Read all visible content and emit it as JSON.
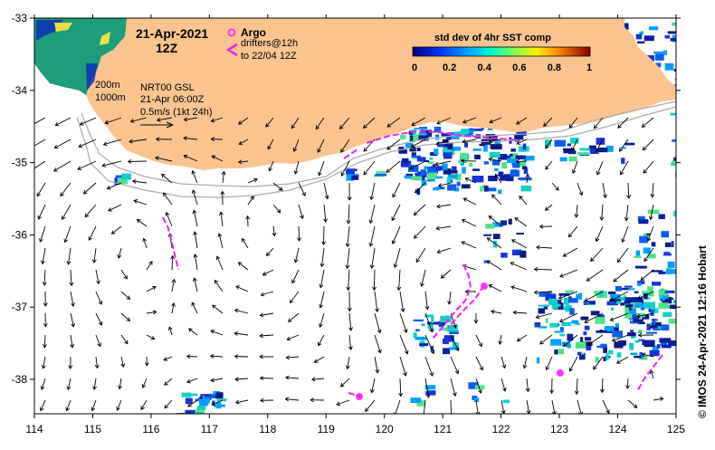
{
  "map": {
    "title_date": "21-Apr-2021",
    "title_time": "12Z",
    "argo_label": "Argo",
    "drifters_label_1": "drifters@12h",
    "drifters_label_2": "to 22/04 12Z",
    "isobath_200": "200m",
    "isobath_1000": "1000m",
    "product_line_1": "NRT00 GSL",
    "product_line_2": "21-Apr 06:00Z",
    "product_line_3": "0.5m/s (1kt 24h)",
    "colorbar_title": "std dev of 4hr SST comp",
    "colorbar_ticks": [
      "0",
      "0.2",
      "0.4",
      "0.6",
      "0.8",
      "1"
    ],
    "credit": "©  IMOS 24-Apr-2021 12:16 Hobart",
    "lat_ticks": [
      "-33",
      "-34",
      "-35",
      "-36",
      "-37",
      "-38"
    ],
    "lon_ticks": [
      "114",
      "115",
      "116",
      "117",
      "118",
      "119",
      "120",
      "121",
      "122",
      "123",
      "124",
      "125"
    ],
    "colors": {
      "land": "#fbc48f",
      "argo": "#ff33ff",
      "drifter": "#ee22ee",
      "arrow": "#000000",
      "isobath": "#aaaaaa"
    }
  }
}
